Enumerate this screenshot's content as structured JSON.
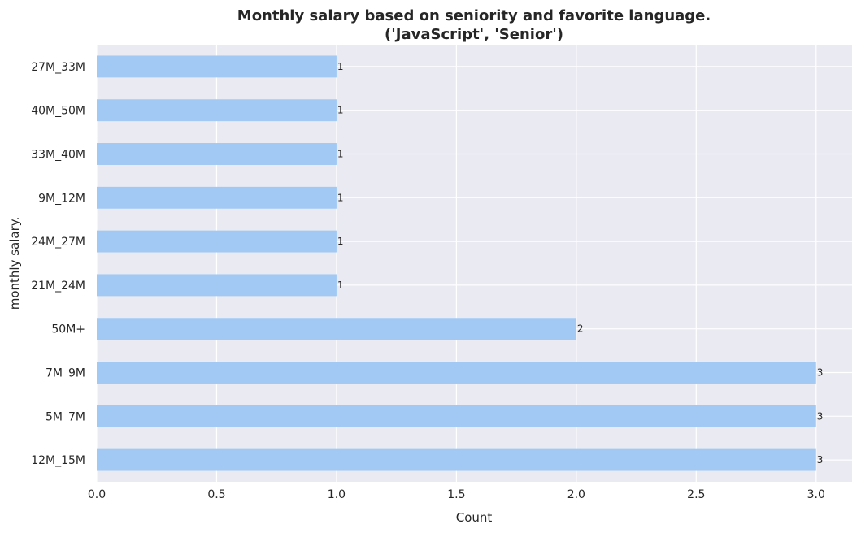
{
  "chart_data": {
    "type": "bar",
    "orientation": "horizontal",
    "title": "Monthly salary based on seniority and favorite language.",
    "subtitle": "('JavaScript', 'Senior')",
    "xlabel": "Count",
    "ylabel": "monthly salary.",
    "categories": [
      "27M_33M",
      "40M_50M",
      "33M_40M",
      "9M_12M",
      "24M_27M",
      "21M_24M",
      "50M+",
      "7M_9M",
      "5M_7M",
      "12M_15M"
    ],
    "values": [
      1,
      1,
      1,
      1,
      1,
      1,
      2,
      3,
      3,
      3
    ],
    "data_labels": [
      "1",
      "1",
      "1",
      "1",
      "1",
      "1",
      "2",
      "3",
      "3",
      "3"
    ],
    "xlim": [
      0,
      3.15
    ],
    "xticks": [
      0.0,
      0.5,
      1.0,
      1.5,
      2.0,
      2.5,
      3.0
    ],
    "xtick_labels": [
      "0.0",
      "0.5",
      "1.0",
      "1.5",
      "2.0",
      "2.5",
      "3.0"
    ],
    "grid": true,
    "colors": {
      "bar": "#a1c9f4",
      "plot_background": "#eaeaf2",
      "grid": "#ffffff",
      "text": "#262626"
    }
  }
}
